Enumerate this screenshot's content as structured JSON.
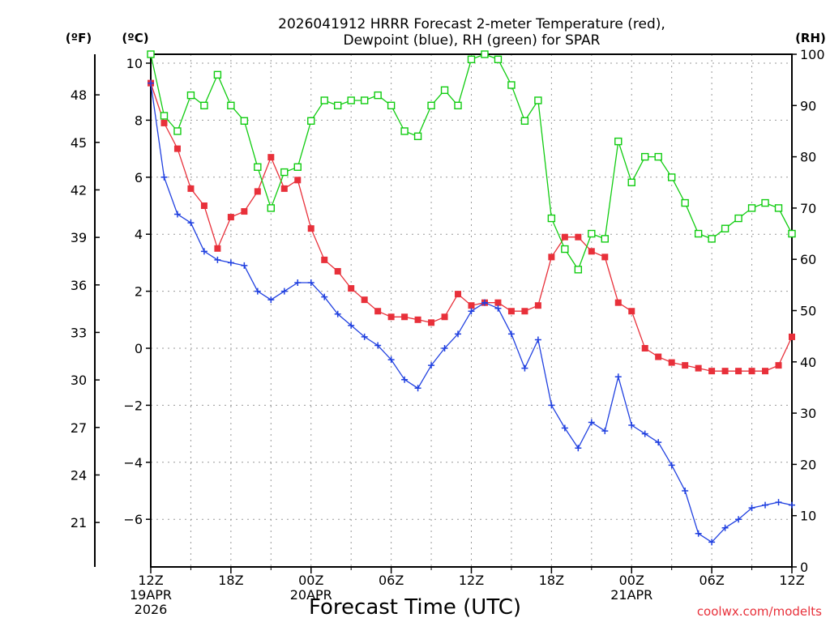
{
  "chart_data": {
    "type": "line",
    "title_line1": "2026041912 HRRR Forecast 2-meter Temperature (red),",
    "title_line2": "Dewpoint (blue), RH (green) for SPAR",
    "xlabel": "Forecast Time (UTC)",
    "credit": "coolwx.com/modelts",
    "units": {
      "fahrenheit": "(ºF)",
      "celsius": "(ºC)",
      "rh": "(RH)"
    },
    "x_range_hours": [
      0,
      48
    ],
    "celsius_range": [
      -8,
      10.3
    ],
    "rh_range": [
      0,
      100
    ],
    "x_ticks": [
      {
        "hour": 0,
        "label": "12Z",
        "sub1": "19APR",
        "sub2": "2026"
      },
      {
        "hour": 6,
        "label": "18Z",
        "sub1": "",
        "sub2": ""
      },
      {
        "hour": 12,
        "label": "00Z",
        "sub1": "20APR",
        "sub2": ""
      },
      {
        "hour": 18,
        "label": "06Z",
        "sub1": "",
        "sub2": ""
      },
      {
        "hour": 24,
        "label": "12Z",
        "sub1": "",
        "sub2": ""
      },
      {
        "hour": 30,
        "label": "18Z",
        "sub1": "",
        "sub2": ""
      },
      {
        "hour": 36,
        "label": "00Z",
        "sub1": "21APR",
        "sub2": ""
      },
      {
        "hour": 42,
        "label": "06Z",
        "sub1": "",
        "sub2": ""
      },
      {
        "hour": 48,
        "label": "12Z",
        "sub1": "",
        "sub2": ""
      }
    ],
    "celsius_ticks": [
      -6,
      -4,
      -2,
      0,
      2,
      4,
      6,
      8,
      10
    ],
    "fahrenheit_ticks": [
      21,
      24,
      27,
      30,
      33,
      36,
      39,
      42,
      45,
      48
    ],
    "rh_ticks": [
      0,
      10,
      20,
      30,
      40,
      50,
      60,
      70,
      80,
      90,
      100
    ],
    "series": [
      {
        "name": "Temperature",
        "color": "#e8303a",
        "marker": "filled-square",
        "values": [
          9.3,
          7.9,
          7.0,
          5.6,
          5.0,
          3.5,
          4.6,
          4.8,
          5.5,
          6.7,
          5.6,
          5.9,
          4.2,
          3.1,
          2.7,
          2.1,
          1.7,
          1.3,
          1.1,
          1.1,
          1.0,
          0.9,
          1.1,
          1.9,
          1.5,
          1.6,
          1.6,
          1.3,
          1.3,
          1.5,
          3.2,
          3.9,
          3.9,
          3.4,
          3.2,
          1.6,
          1.3,
          0.0,
          -0.3,
          -0.5,
          -0.6,
          -0.7,
          -0.8,
          -0.8,
          -0.8,
          -0.8,
          -0.8,
          -0.6,
          0.4
        ]
      },
      {
        "name": "Dewpoint",
        "color": "#2040e0",
        "marker": "plus",
        "values": [
          9.3,
          6.0,
          4.7,
          4.4,
          3.4,
          3.1,
          3.0,
          2.9,
          2.0,
          1.7,
          2.0,
          2.3,
          2.3,
          1.8,
          1.2,
          0.8,
          0.4,
          0.1,
          -0.4,
          -1.1,
          -1.4,
          -0.6,
          0.0,
          0.5,
          1.3,
          1.6,
          1.4,
          0.5,
          -0.7,
          0.3,
          -2.0,
          -2.8,
          -3.5,
          -2.6,
          -2.9,
          -1.0,
          -2.7,
          -3.0,
          -3.3,
          -4.1,
          -5.0,
          -6.5,
          -6.8,
          -6.3,
          -6.0,
          -5.6,
          -5.5,
          -5.4,
          -5.5
        ]
      },
      {
        "name": "RH",
        "color": "#10cc10",
        "marker": "open-square",
        "values": [
          100,
          88,
          85,
          92,
          90,
          96,
          90,
          87,
          78,
          70,
          77,
          78,
          87,
          91,
          90,
          91,
          91,
          92,
          90,
          85,
          84,
          90,
          93,
          90,
          99,
          100,
          99,
          94,
          87,
          91,
          68,
          62,
          58,
          65,
          64,
          83,
          75,
          80,
          80,
          76,
          71,
          65,
          64,
          66,
          68,
          70,
          71,
          70,
          65
        ]
      }
    ]
  }
}
